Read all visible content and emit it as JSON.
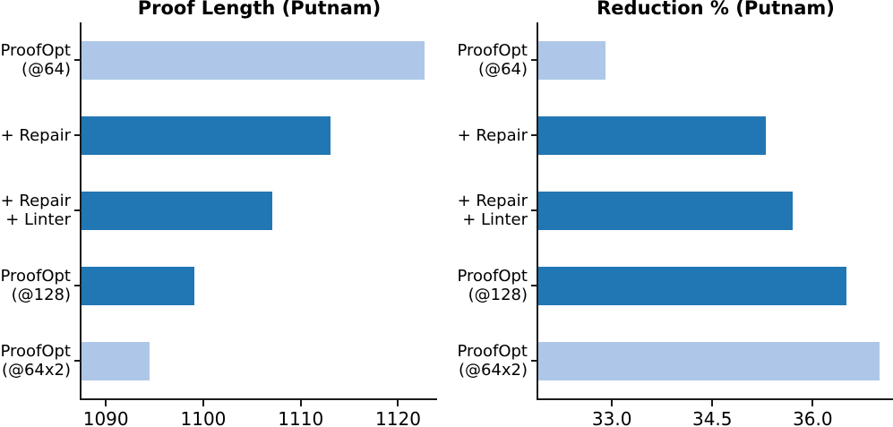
{
  "figure": {
    "background": "#ffffff",
    "axis_color": "#1a1a1a",
    "text_color": "#000000",
    "palette": {
      "dark": "#2177b4",
      "light": "#aec7e8"
    }
  },
  "chart_data": [
    {
      "type": "bar",
      "orientation": "horizontal",
      "title": "Proof Length (Putnam)",
      "categories": [
        "ProofOpt (@64)",
        "+ Repair",
        "+ Repair + Linter",
        "ProofOpt (@128)",
        "ProofOpt (@64x2)"
      ],
      "category_lines": [
        [
          "ProofOpt",
          "(@64)"
        ],
        [
          "+ Repair"
        ],
        [
          "+ Repair",
          "+ Linter"
        ],
        [
          "ProofOpt",
          "(@128)"
        ],
        [
          "ProofOpt",
          "(@64x2)"
        ]
      ],
      "values": [
        1122.7,
        1113.1,
        1107.1,
        1099.1,
        1094.5
      ],
      "bar_palette": [
        "light",
        "dark",
        "dark",
        "dark",
        "light"
      ],
      "xlim": [
        1087.5,
        1124.0
      ],
      "xticks": [
        1090,
        1100,
        1110,
        1120
      ],
      "xtick_labels": [
        "1090",
        "1100",
        "1110",
        "1120"
      ],
      "grid": false,
      "legend": null
    },
    {
      "type": "bar",
      "orientation": "horizontal",
      "title": "Reduction % (Putnam)",
      "categories": [
        "ProofOpt (@64)",
        "+ Repair",
        "+ Repair + Linter",
        "ProofOpt (@128)",
        "ProofOpt (@64x2)"
      ],
      "category_lines": [
        [
          "ProofOpt",
          "(@64)"
        ],
        [
          "+ Repair"
        ],
        [
          "+ Repair",
          "+ Linter"
        ],
        [
          "ProofOpt",
          "(@128)"
        ],
        [
          "ProofOpt",
          "(@64x2)"
        ]
      ],
      "values": [
        32.9,
        35.3,
        35.7,
        36.5,
        37.0
      ],
      "bar_palette": [
        "light",
        "dark",
        "dark",
        "dark",
        "light"
      ],
      "xlim": [
        31.9,
        37.2
      ],
      "xticks": [
        33.0,
        34.5,
        36.0
      ],
      "xtick_labels": [
        "33.0",
        "34.5",
        "36.0"
      ],
      "grid": false,
      "legend": null
    }
  ]
}
